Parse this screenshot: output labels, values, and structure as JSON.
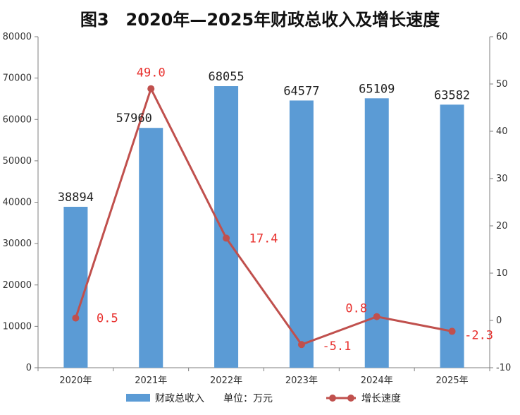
{
  "chart_data": {
    "type": "bar",
    "title": "图3　2020年—2025年财政总收入及增长速度",
    "categories": [
      "2020年",
      "2021年",
      "2022年",
      "2023年",
      "2024年",
      "2025年"
    ],
    "series": [
      {
        "name": "财政总收入",
        "type": "bar",
        "axis": "left",
        "color": "#5b9bd5",
        "values": [
          38894,
          57960,
          68055,
          64577,
          65109,
          63582
        ],
        "labels": [
          "38894",
          "57960",
          "68055",
          "64577",
          "65109",
          "63582"
        ]
      },
      {
        "name": "增长速度",
        "type": "line",
        "axis": "right",
        "color": "#c0504d",
        "values": [
          0.5,
          49.0,
          17.4,
          -5.1,
          0.8,
          -2.3
        ],
        "labels": [
          "0.5",
          "49.0",
          "17.4",
          "-5.1",
          "0.8",
          "-2.3"
        ]
      }
    ],
    "y_left": {
      "min": 0,
      "max": 80000,
      "ticks": [
        "0",
        "10000",
        "20000",
        "30000",
        "40000",
        "50000",
        "60000",
        "70000",
        "80000"
      ]
    },
    "y_right": {
      "min": -10,
      "max": 60,
      "ticks": [
        "-10",
        "0",
        "10",
        "20",
        "30",
        "40",
        "50",
        "60"
      ]
    },
    "unit_note": "单位：万元",
    "legend_position": "bottom",
    "grid": false
  }
}
